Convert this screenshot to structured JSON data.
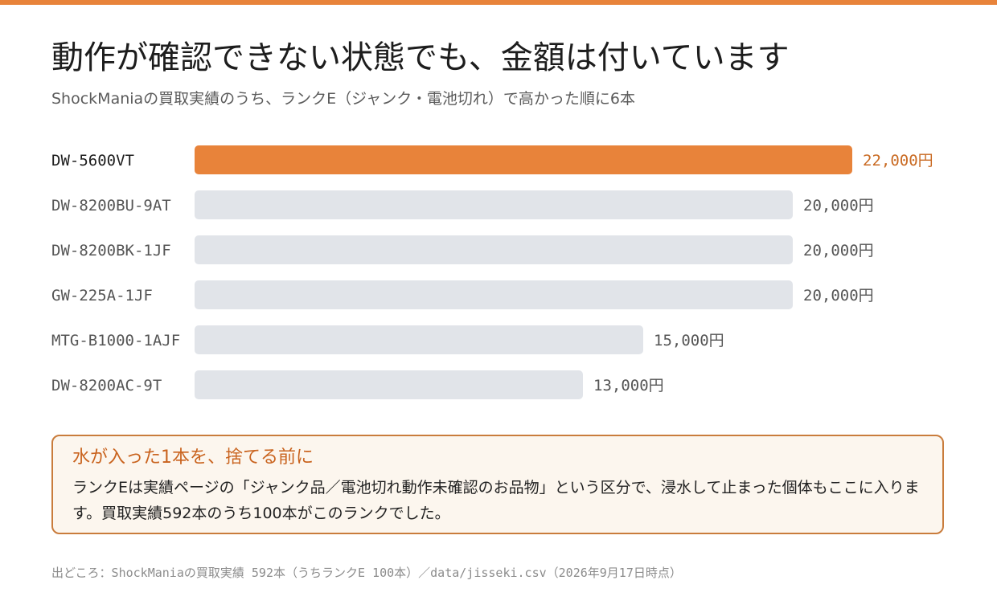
{
  "header": {
    "title": "動作が確認できない状態でも、金額は付いています",
    "subtitle": "ShockManiaの買取実績のうち、ランクE（ジャンク・電池切れ）で高かった順に6本"
  },
  "colors": {
    "accent": "#e8833a",
    "bar_default": "#e1e4e9",
    "accent_text": "#c96a22"
  },
  "chart_data": {
    "type": "bar",
    "orientation": "horizontal",
    "categories": [
      "DW-5600VT",
      "DW-8200BU-9AT",
      "DW-8200BK-1JF",
      "GW-225A-1JF",
      "MTG-B1000-1AJF",
      "DW-8200AC-9T"
    ],
    "values": [
      22000,
      20000,
      20000,
      20000,
      15000,
      13000
    ],
    "value_labels": [
      "22,000円",
      "20,000円",
      "20,000円",
      "20,000円",
      "15,000円",
      "13,000円"
    ],
    "highlight_index": 0,
    "unit": "円",
    "xlim": [
      0,
      22000
    ],
    "grid": false,
    "legend": "none"
  },
  "callout": {
    "title": "水が入った1本を、捨てる前に",
    "body": "ランクEは実績ページの「ジャンク品／電池切れ動作未確認のお品物」という区分で、浸水して止まった個体もここに入ります。買取実績592本のうち100本がこのランクでした。"
  },
  "footer": {
    "source": "出どころ：ShockManiaの買取実績 592本（うちランクE 100本）／data/jisseki.csv（2026年9月17日時点）"
  }
}
